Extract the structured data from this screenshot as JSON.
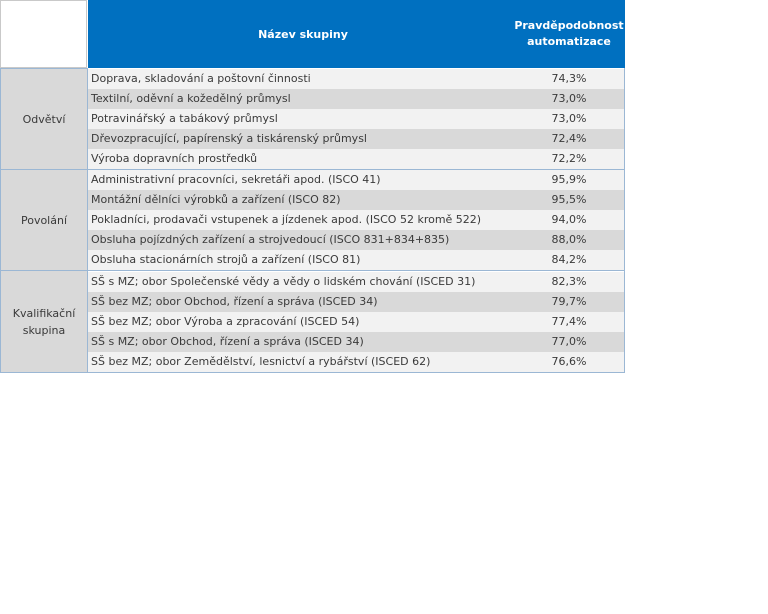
{
  "header": {
    "name_label": "Název skupiny",
    "prob_line1": "Pravděpodobnost",
    "prob_line2": "automatizace"
  },
  "groups": [
    {
      "label_line1": "Odvětví",
      "label_line2": "",
      "rows": [
        {
          "name": "Doprava, skladování a poštovní činnosti",
          "value": "74,3%"
        },
        {
          "name": "Textilní, oděvní a kožedělný průmysl",
          "value": "73,0%"
        },
        {
          "name": "Potravinářský a tabákový průmysl",
          "value": "73,0%"
        },
        {
          "name": "Dřevozpracující, papírenský a tiskárenský průmysl",
          "value": "72,4%"
        },
        {
          "name": "Výroba dopravních prostředků",
          "value": "72,2%"
        }
      ]
    },
    {
      "label_line1": "Povolání",
      "label_line2": "",
      "rows": [
        {
          "name": "Administrativní pracovníci, sekretáři apod. (ISCO 41)",
          "value": "95,9%"
        },
        {
          "name": "Montážní dělníci výrobků a zařízení (ISCO 82)",
          "value": "95,5%"
        },
        {
          "name": "Pokladníci, prodavači vstupenek a jízdenek apod. (ISCO 52 kromě 522)",
          "value": "94,0%"
        },
        {
          "name": "Obsluha pojízdných zařízení a strojvedoucí (ISCO 831+834+835)",
          "value": "88,0%"
        },
        {
          "name": "Obsluha stacionárních strojů a zařízení (ISCO 81)",
          "value": "84,2%"
        }
      ]
    },
    {
      "label_line1": "Kvalifikační",
      "label_line2": "skupina",
      "rows": [
        {
          "name": "SŠ s MZ; obor Společenské vědy a vědy o lidském chování (ISCED 31)",
          "value": "82,3%"
        },
        {
          "name": "SŠ bez MZ; obor Obchod, řízení a správa (ISCED 34)",
          "value": "79,7%"
        },
        {
          "name": "SŠ bez MZ; obor Výroba a zpracování (ISCED 54)",
          "value": "77,4%"
        },
        {
          "name": "SŠ s MZ; obor Obchod, řízení a správa (ISCED 34)",
          "value": "77,0%"
        },
        {
          "name": "SŠ bez MZ; obor Zemědělství, lesnictví a rybářství (ISCED 62)",
          "value": "76,6%"
        }
      ]
    }
  ]
}
